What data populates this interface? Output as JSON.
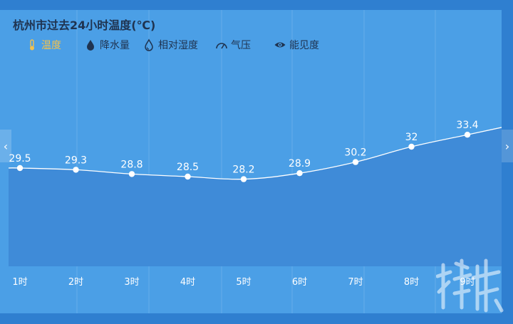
{
  "title": "杭州市过去24小时温度(℃)",
  "tabs": [
    {
      "label": "温度",
      "icon": "thermometer-icon",
      "active": true
    },
    {
      "label": "降水量",
      "icon": "raindrop-icon",
      "active": false
    },
    {
      "label": "相对湿度",
      "icon": "humidity-drop-icon",
      "active": false
    },
    {
      "label": "气压",
      "icon": "gauge-icon",
      "active": false
    },
    {
      "label": "能见度",
      "icon": "eye-icon",
      "active": false
    }
  ],
  "nav": {
    "prev_icon": "chevron-left-icon",
    "next_icon": "chevron-right-icon",
    "prev_glyph": "‹",
    "next_glyph": "›"
  },
  "colors": {
    "background": "#4b9fe6",
    "area_fill": "#3f8bd8",
    "line": "#ffffff",
    "active_tab": "#f2c14e",
    "text": "#1f3350"
  },
  "chart_data": {
    "type": "area",
    "categories": [
      "1时",
      "2时",
      "3时",
      "4时",
      "5时",
      "6时",
      "7时",
      "8时",
      "9时"
    ],
    "series": [
      {
        "values": [
          29.5,
          29.3,
          28.8,
          28.5,
          28.2,
          28.9,
          30.2,
          32,
          33.4
        ]
      }
    ],
    "value_labels": [
      "29.5",
      "29.3",
      "28.8",
      "28.5",
      "28.2",
      "28.9",
      "30.2",
      "32",
      "33.4"
    ],
    "ylim": [
      18,
      40
    ],
    "grid": "vertical",
    "legend": "none"
  }
}
